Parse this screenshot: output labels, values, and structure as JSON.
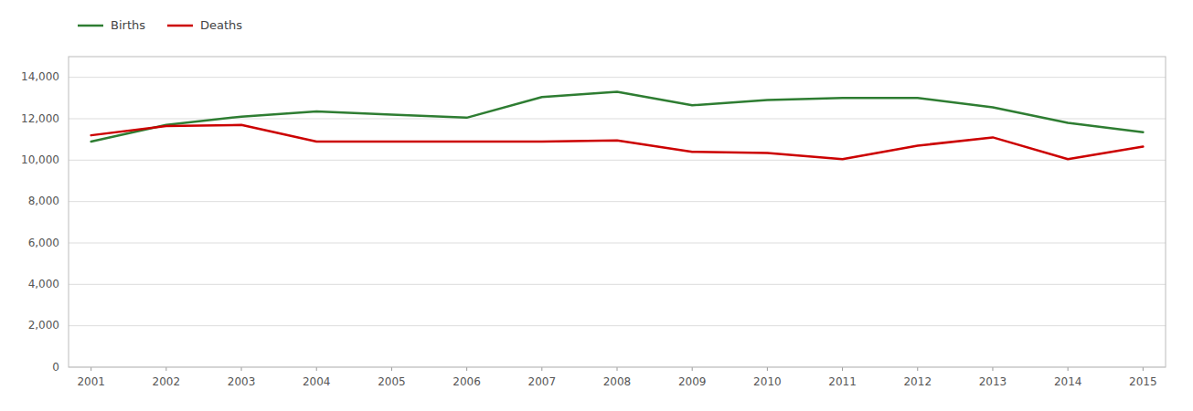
{
  "chart_data": {
    "type": "line",
    "x": [
      2001,
      2002,
      2003,
      2004,
      2005,
      2006,
      2007,
      2008,
      2009,
      2010,
      2011,
      2012,
      2013,
      2014,
      2015
    ],
    "series": [
      {
        "name": "Births",
        "color": "#2e7d32",
        "values": [
          10900,
          11700,
          12100,
          12350,
          12200,
          12050,
          13050,
          13300,
          12650,
          12900,
          13000,
          13000,
          12550,
          11800,
          11350
        ]
      },
      {
        "name": "Deaths",
        "color": "#cc0000",
        "values": [
          11200,
          11650,
          11700,
          10900,
          10900,
          10900,
          10900,
          10950,
          10400,
          10350,
          10050,
          10700,
          11100,
          10050,
          10650
        ]
      }
    ],
    "xlim": [
      2000.7,
      2015.3
    ],
    "xticks": [
      2001,
      2002,
      2003,
      2004,
      2005,
      2006,
      2007,
      2008,
      2009,
      2010,
      2011,
      2012,
      2013,
      2014,
      2015
    ],
    "ylim": [
      0,
      15000
    ],
    "yticks": [
      0,
      {
        "value": 2000,
        "label": "2,000"
      },
      {
        "value": 4000,
        "label": "4,000"
      },
      {
        "value": 6000,
        "label": "6,000"
      },
      {
        "value": 8000,
        "label": "8,000"
      },
      {
        "value": 10000,
        "label": "10,000"
      },
      {
        "value": 12000,
        "label": "12,000"
      },
      {
        "value": 14000,
        "label": "14,000"
      }
    ],
    "grid": true,
    "legend": "top left"
  }
}
